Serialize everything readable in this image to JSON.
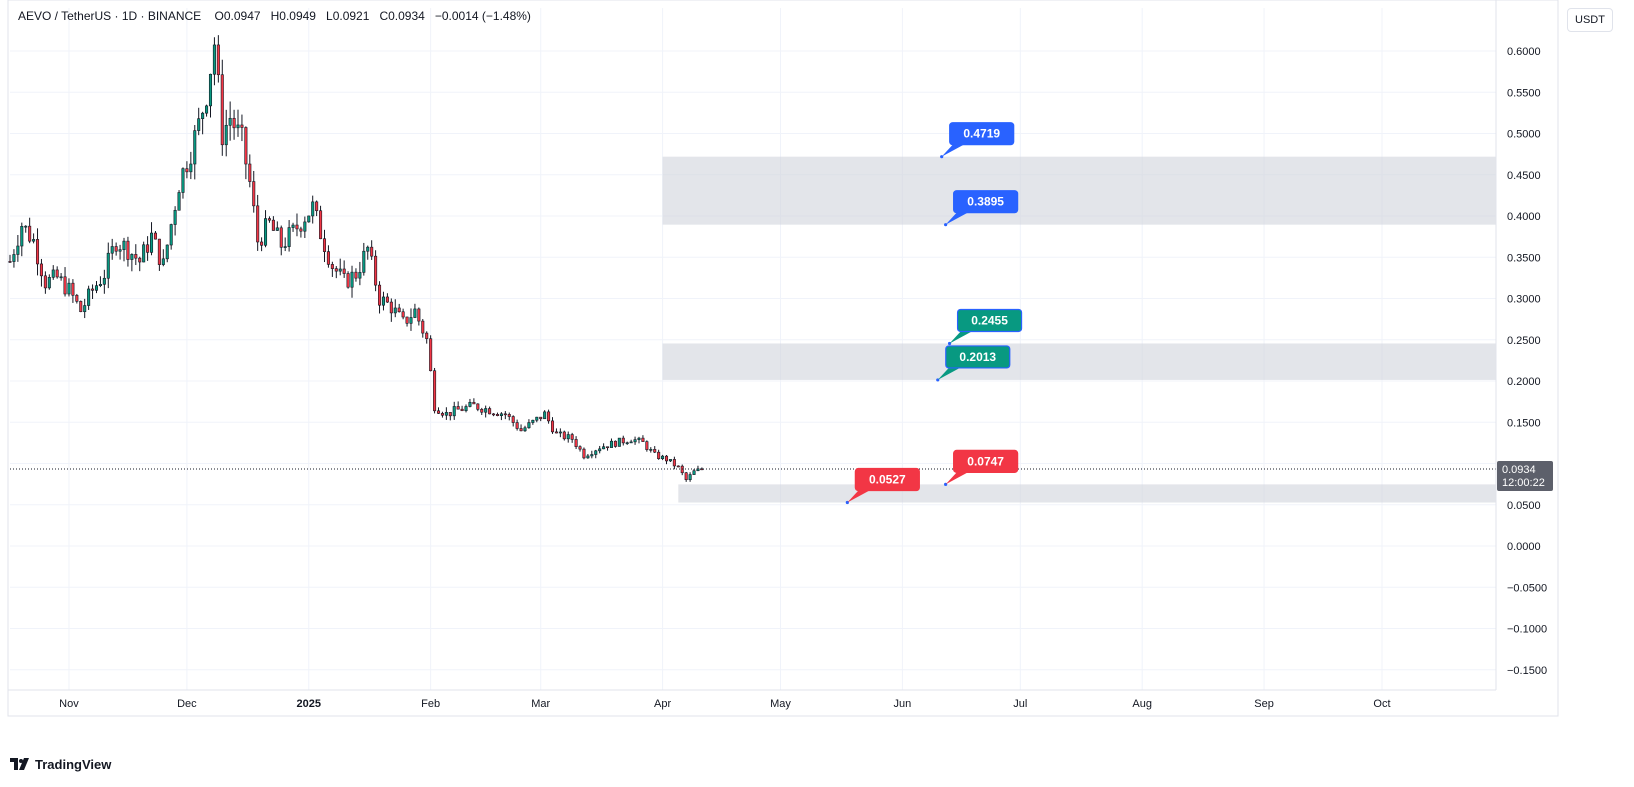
{
  "header": {
    "symbol": "AEVO / TetherUS · 1D · BINANCE",
    "open": "O0.0947",
    "high": "H0.0949",
    "low": "L0.0921",
    "close": "C0.0934",
    "change": "−0.0014 (−1.48%)"
  },
  "currency": "USDT",
  "brand": "TradingView",
  "last_price": {
    "price": "0.0934",
    "countdown": "12:00:22"
  },
  "colors": {
    "up": "#089981",
    "down": "#f23645",
    "blue": "#2962ff",
    "zone": "#d1d4dc",
    "grid": "#f0f3fa"
  },
  "chart_data": {
    "type": "candlestick",
    "ylim": [
      -0.17,
      0.64
    ],
    "y_ticks": [
      {
        "v": 0.6,
        "label": "0.6000"
      },
      {
        "v": 0.55,
        "label": "0.5500"
      },
      {
        "v": 0.5,
        "label": "0.5000"
      },
      {
        "v": 0.45,
        "label": "0.4500"
      },
      {
        "v": 0.4,
        "label": "0.4000"
      },
      {
        "v": 0.35,
        "label": "0.3500"
      },
      {
        "v": 0.3,
        "label": "0.3000"
      },
      {
        "v": 0.25,
        "label": "0.2500"
      },
      {
        "v": 0.2,
        "label": "0.2000"
      },
      {
        "v": 0.15,
        "label": "0.1500"
      },
      {
        "v": 0.05,
        "label": "0.0500"
      },
      {
        "v": 0.0,
        "label": "0.0000"
      },
      {
        "v": -0.05,
        "label": "−0.0500"
      },
      {
        "v": -0.1,
        "label": "−0.1000"
      },
      {
        "v": -0.15,
        "label": "−0.1500"
      }
    ],
    "x_start": "2024-10-17",
    "x_end": "2025-10-30",
    "x_ticks": [
      {
        "date": "2024-11-01",
        "label": "Nov",
        "bold": false
      },
      {
        "date": "2024-12-01",
        "label": "Dec",
        "bold": false
      },
      {
        "date": "2025-01-01",
        "label": "2025",
        "bold": true
      },
      {
        "date": "2025-02-01",
        "label": "Feb",
        "bold": false
      },
      {
        "date": "2025-03-01",
        "label": "Mar",
        "bold": false
      },
      {
        "date": "2025-04-01",
        "label": "Apr",
        "bold": false
      },
      {
        "date": "2025-05-01",
        "label": "May",
        "bold": false
      },
      {
        "date": "2025-06-01",
        "label": "Jun",
        "bold": false
      },
      {
        "date": "2025-07-01",
        "label": "Jul",
        "bold": false
      },
      {
        "date": "2025-08-01",
        "label": "Aug",
        "bold": false
      },
      {
        "date": "2025-09-01",
        "label": "Sep",
        "bold": false
      },
      {
        "date": "2025-10-01",
        "label": "Oct",
        "bold": false
      }
    ],
    "price_path": [
      [
        "2024-10-17",
        0.345
      ],
      [
        "2024-10-20",
        0.39
      ],
      [
        "2024-10-23",
        0.37
      ],
      [
        "2024-10-26",
        0.32
      ],
      [
        "2024-10-29",
        0.325
      ],
      [
        "2024-11-01",
        0.31
      ],
      [
        "2024-11-04",
        0.285
      ],
      [
        "2024-11-07",
        0.31
      ],
      [
        "2024-11-10",
        0.33
      ],
      [
        "2024-11-13",
        0.37
      ],
      [
        "2024-11-16",
        0.36
      ],
      [
        "2024-11-19",
        0.345
      ],
      [
        "2024-11-22",
        0.375
      ],
      [
        "2024-11-25",
        0.34
      ],
      [
        "2024-11-27",
        0.39
      ],
      [
        "2024-11-29",
        0.44
      ],
      [
        "2024-12-02",
        0.48
      ],
      [
        "2024-12-04",
        0.51
      ],
      [
        "2024-12-06",
        0.55
      ],
      [
        "2024-12-08",
        0.61
      ],
      [
        "2024-12-10",
        0.5
      ],
      [
        "2024-12-12",
        0.52
      ],
      [
        "2024-12-15",
        0.49
      ],
      [
        "2024-12-17",
        0.44
      ],
      [
        "2024-12-19",
        0.37
      ],
      [
        "2024-12-22",
        0.39
      ],
      [
        "2024-12-25",
        0.365
      ],
      [
        "2024-12-28",
        0.38
      ],
      [
        "2024-12-31",
        0.4
      ],
      [
        "2025-01-02",
        0.41
      ],
      [
        "2025-01-04",
        0.38
      ],
      [
        "2025-01-07",
        0.34
      ],
      [
        "2025-01-10",
        0.32
      ],
      [
        "2025-01-13",
        0.33
      ],
      [
        "2025-01-16",
        0.36
      ],
      [
        "2025-01-19",
        0.3
      ],
      [
        "2025-01-22",
        0.29
      ],
      [
        "2025-01-25",
        0.27
      ],
      [
        "2025-01-28",
        0.285
      ],
      [
        "2025-01-31",
        0.25
      ],
      [
        "2025-02-02",
        0.17
      ],
      [
        "2025-02-05",
        0.16
      ],
      [
        "2025-02-08",
        0.165
      ],
      [
        "2025-02-12",
        0.17
      ],
      [
        "2025-02-16",
        0.165
      ],
      [
        "2025-02-20",
        0.16
      ],
      [
        "2025-02-24",
        0.14
      ],
      [
        "2025-02-27",
        0.15
      ],
      [
        "2025-03-02",
        0.16
      ],
      [
        "2025-03-05",
        0.135
      ],
      [
        "2025-03-09",
        0.13
      ],
      [
        "2025-03-12",
        0.11
      ],
      [
        "2025-03-16",
        0.12
      ],
      [
        "2025-03-20",
        0.125
      ],
      [
        "2025-03-24",
        0.13
      ],
      [
        "2025-03-27",
        0.125
      ],
      [
        "2025-03-30",
        0.11
      ],
      [
        "2025-04-02",
        0.105
      ],
      [
        "2025-04-05",
        0.095
      ],
      [
        "2025-04-07",
        0.08
      ],
      [
        "2025-04-09",
        0.09
      ],
      [
        "2025-04-11",
        0.0934
      ]
    ],
    "zones": [
      {
        "name": "upper-zone",
        "low": 0.3895,
        "high": 0.4719,
        "start": "2025-04-01"
      },
      {
        "name": "middle-zone",
        "low": 0.2013,
        "high": 0.2455,
        "start": "2025-04-01"
      },
      {
        "name": "lower-zone",
        "low": 0.0527,
        "high": 0.0747,
        "start": "2025-04-05"
      }
    ],
    "labels": [
      {
        "text": "0.4719",
        "color": "blue",
        "anchor_date": "2025-06-11",
        "anchor_value": 0.4719
      },
      {
        "text": "0.3895",
        "color": "blue",
        "anchor_date": "2025-06-12",
        "anchor_value": 0.3895
      },
      {
        "text": "0.2455",
        "color": "green",
        "anchor_date": "2025-06-13",
        "anchor_value": 0.2455
      },
      {
        "text": "0.2013",
        "color": "green",
        "anchor_date": "2025-06-10",
        "anchor_value": 0.2013
      },
      {
        "text": "0.0747",
        "color": "red",
        "anchor_date": "2025-06-12",
        "anchor_value": 0.0747
      },
      {
        "text": "0.0527",
        "color": "red",
        "anchor_date": "2025-05-18",
        "anchor_value": 0.0527
      }
    ]
  }
}
